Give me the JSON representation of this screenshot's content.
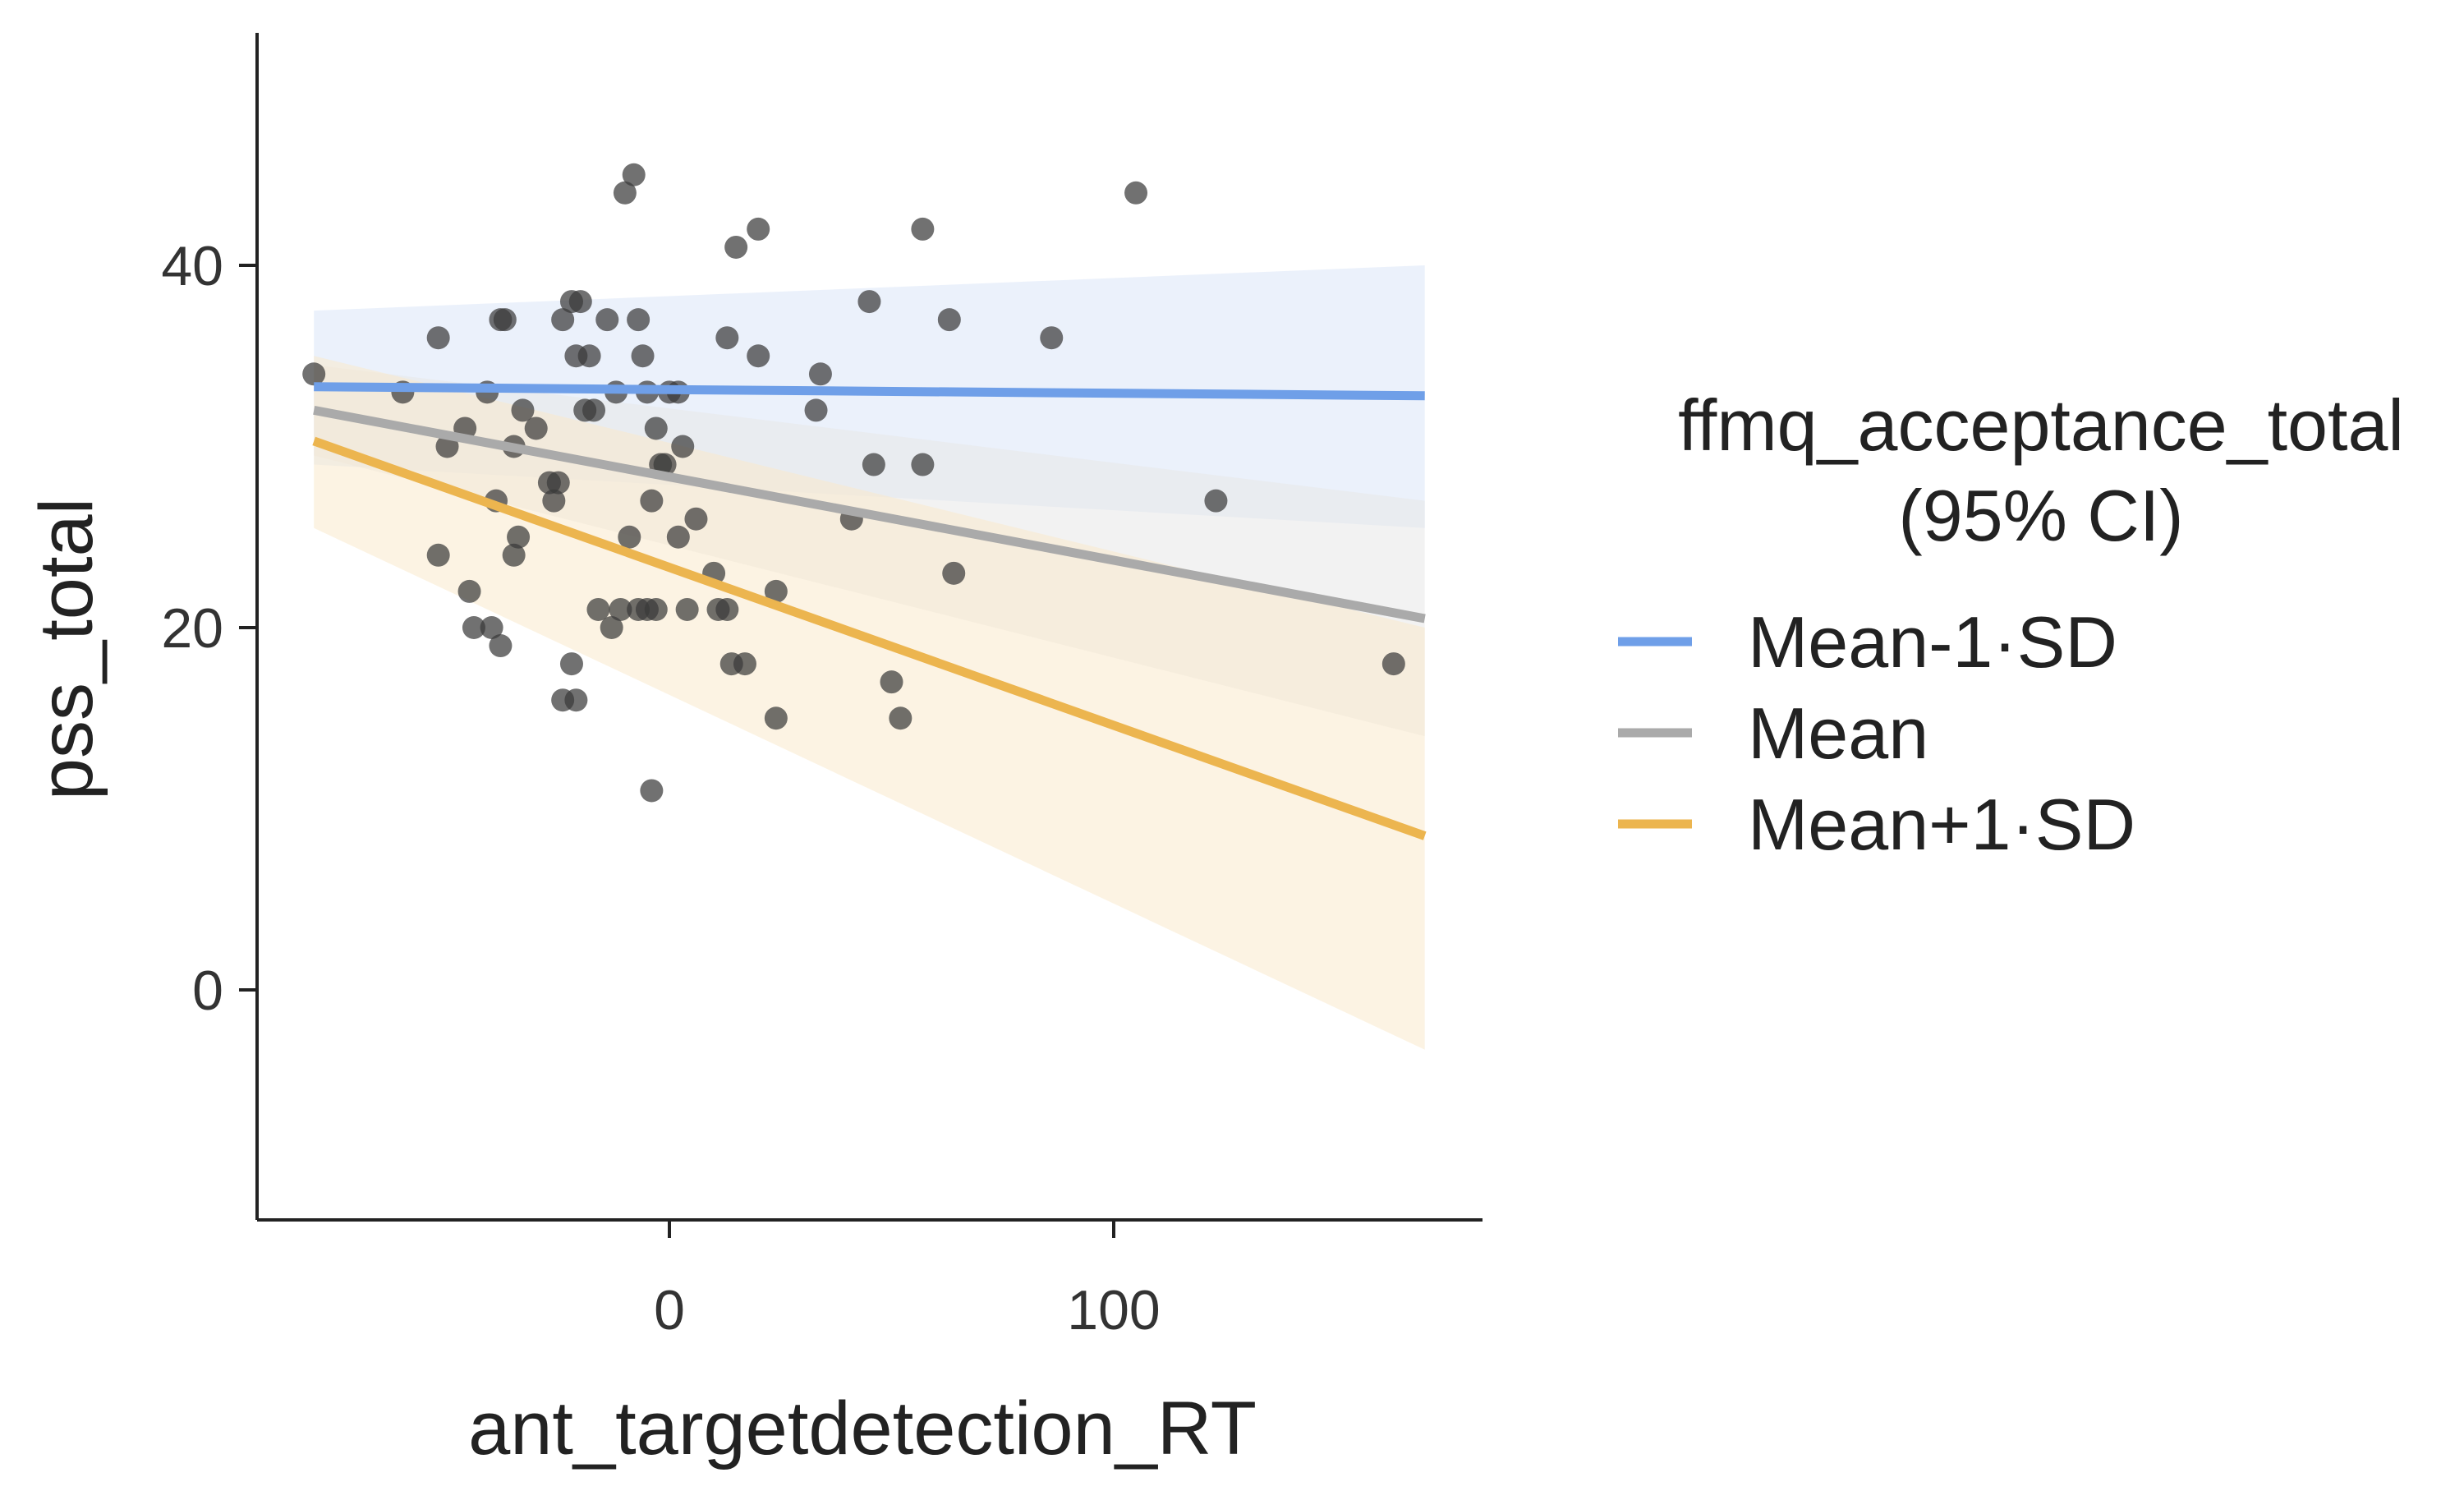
{
  "chart_data": {
    "type": "scatter",
    "title": "",
    "xlabel": "ant_targetdetection_RT",
    "ylabel": "pss_total",
    "xlim": [
      -93,
      180
    ],
    "ylim": [
      -13,
      53
    ],
    "xticks": [
      0,
      100
    ],
    "yticks": [
      0,
      20,
      40
    ],
    "grid": false,
    "legend": {
      "title_line1": "ffmq_acceptance_total",
      "title_line2": "(95% CI)",
      "position": "right"
    },
    "points": [
      {
        "x": -80,
        "y": 34
      },
      {
        "x": -60,
        "y": 33
      },
      {
        "x": -52,
        "y": 36
      },
      {
        "x": -50,
        "y": 30
      },
      {
        "x": -46,
        "y": 31
      },
      {
        "x": -41,
        "y": 33
      },
      {
        "x": -38,
        "y": 37
      },
      {
        "x": -37,
        "y": 37
      },
      {
        "x": -35,
        "y": 30
      },
      {
        "x": -33,
        "y": 32
      },
      {
        "x": -30,
        "y": 31
      },
      {
        "x": -27,
        "y": 28
      },
      {
        "x": -25,
        "y": 28
      },
      {
        "x": -24,
        "y": 37
      },
      {
        "x": -22,
        "y": 38
      },
      {
        "x": -21,
        "y": 35
      },
      {
        "x": -20,
        "y": 38
      },
      {
        "x": -19,
        "y": 32
      },
      {
        "x": -18,
        "y": 35
      },
      {
        "x": -17,
        "y": 32
      },
      {
        "x": -14,
        "y": 37
      },
      {
        "x": -12,
        "y": 33
      },
      {
        "x": -10,
        "y": 44
      },
      {
        "x": -8,
        "y": 45
      },
      {
        "x": -7,
        "y": 37
      },
      {
        "x": -6,
        "y": 35
      },
      {
        "x": -5,
        "y": 33
      },
      {
        "x": -3,
        "y": 31
      },
      {
        "x": -2,
        "y": 29
      },
      {
        "x": -1,
        "y": 29
      },
      {
        "x": 0,
        "y": 33
      },
      {
        "x": 2,
        "y": 33
      },
      {
        "x": 3,
        "y": 30
      },
      {
        "x": -4,
        "y": 27
      },
      {
        "x": 6,
        "y": 26
      },
      {
        "x": 2,
        "y": 25
      },
      {
        "x": -52,
        "y": 24
      },
      {
        "x": -45,
        "y": 22
      },
      {
        "x": -44,
        "y": 20
      },
      {
        "x": -40,
        "y": 20
      },
      {
        "x": -39,
        "y": 27
      },
      {
        "x": -38,
        "y": 19
      },
      {
        "x": -35,
        "y": 24
      },
      {
        "x": -34,
        "y": 25
      },
      {
        "x": -26,
        "y": 27
      },
      {
        "x": -24,
        "y": 16
      },
      {
        "x": -22,
        "y": 18
      },
      {
        "x": -21,
        "y": 16
      },
      {
        "x": -16,
        "y": 21
      },
      {
        "x": -13,
        "y": 20
      },
      {
        "x": -11,
        "y": 21
      },
      {
        "x": -9,
        "y": 25
      },
      {
        "x": -7,
        "y": 21
      },
      {
        "x": -5,
        "y": 21
      },
      {
        "x": -4,
        "y": 11
      },
      {
        "x": -3,
        "y": 21
      },
      {
        "x": 4,
        "y": 21
      },
      {
        "x": 10,
        "y": 23
      },
      {
        "x": 11,
        "y": 21
      },
      {
        "x": 13,
        "y": 21
      },
      {
        "x": 14,
        "y": 18
      },
      {
        "x": 17,
        "y": 18
      },
      {
        "x": 13,
        "y": 36
      },
      {
        "x": 15,
        "y": 41
      },
      {
        "x": 20,
        "y": 35
      },
      {
        "x": 20,
        "y": 42
      },
      {
        "x": 24,
        "y": 22
      },
      {
        "x": 24,
        "y": 15
      },
      {
        "x": 33,
        "y": 32
      },
      {
        "x": 34,
        "y": 34
      },
      {
        "x": 41,
        "y": 26
      },
      {
        "x": 45,
        "y": 38
      },
      {
        "x": 46,
        "y": 29
      },
      {
        "x": 50,
        "y": 17
      },
      {
        "x": 52,
        "y": 15
      },
      {
        "x": 57,
        "y": 29
      },
      {
        "x": 57,
        "y": 42
      },
      {
        "x": 63,
        "y": 37
      },
      {
        "x": 64,
        "y": 23
      },
      {
        "x": 86,
        "y": 36
      },
      {
        "x": 105,
        "y": 44
      },
      {
        "x": 123,
        "y": 27
      },
      {
        "x": 163,
        "y": 18
      }
    ],
    "series": [
      {
        "name": "Mean-1·SD",
        "color": "#6f9fe8",
        "band_color": "#dbe6f8",
        "x": [
          -80,
          170
        ],
        "y": [
          33.3,
          32.8
        ],
        "ci_lower": [
          29,
          25.5
        ],
        "ci_upper": [
          37.5,
          40
        ]
      },
      {
        "name": "Mean",
        "color": "#aaaaaa",
        "band_color": "#e7e7e7",
        "x": [
          -80,
          170
        ],
        "y": [
          32,
          20.5
        ],
        "ci_lower": [
          29.5,
          14
        ],
        "ci_upper": [
          34.5,
          27
        ]
      },
      {
        "name": "Mean+1·SD",
        "color": "#ecb54f",
        "band_color": "#f9e9cc",
        "x": [
          -80,
          170
        ],
        "y": [
          30.3,
          8.5
        ],
        "ci_lower": [
          25.5,
          -3.3
        ],
        "ci_upper": [
          35,
          20
        ]
      }
    ]
  }
}
